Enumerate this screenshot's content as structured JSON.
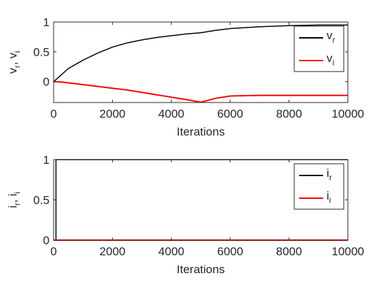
{
  "chart_data": [
    {
      "type": "line",
      "xlabel": "Iterations",
      "ylabel": "v_r, v_i",
      "xlim": [
        0,
        10000
      ],
      "ylim": [
        -0.35,
        1
      ],
      "xticks": [
        0,
        2000,
        4000,
        6000,
        8000,
        10000
      ],
      "yticks": [
        0,
        0.5,
        1
      ],
      "legend": "northeast",
      "series": [
        {
          "name": "v_r",
          "color": "#000000",
          "x": [
            0,
            250,
            500,
            1000,
            1500,
            2000,
            2500,
            3000,
            3500,
            4000,
            4500,
            5000,
            5500,
            6000,
            7000,
            8000,
            9000,
            10000
          ],
          "values": [
            0,
            0.11,
            0.22,
            0.36,
            0.48,
            0.58,
            0.65,
            0.7,
            0.74,
            0.77,
            0.8,
            0.82,
            0.86,
            0.89,
            0.92,
            0.94,
            0.95,
            0.95
          ]
        },
        {
          "name": "v_i",
          "color": "#ff0000",
          "x": [
            0,
            250,
            500,
            1000,
            1500,
            2000,
            2500,
            3000,
            3500,
            4000,
            4500,
            5000,
            5500,
            6000,
            7000,
            8000,
            9000,
            10000
          ],
          "values": [
            0,
            -0.005,
            -0.02,
            -0.05,
            -0.08,
            -0.11,
            -0.14,
            -0.18,
            -0.22,
            -0.26,
            -0.3,
            -0.345,
            -0.28,
            -0.24,
            -0.23,
            -0.23,
            -0.23,
            -0.23
          ]
        }
      ]
    },
    {
      "type": "line",
      "xlabel": "Iterations",
      "ylabel": "i_r, i_i",
      "xlim": [
        0,
        10000
      ],
      "ylim": [
        0,
        1
      ],
      "xticks": [
        0,
        2000,
        4000,
        6000,
        8000,
        10000
      ],
      "yticks": [
        0,
        0.5,
        1
      ],
      "legend": "northeast",
      "series": [
        {
          "name": "i_r",
          "color": "#000000",
          "x": [
            0,
            80,
            80,
            10000
          ],
          "values": [
            0,
            0,
            1,
            1
          ]
        },
        {
          "name": "i_i",
          "color": "#ff0000",
          "x": [
            0,
            10000
          ],
          "values": [
            0,
            0
          ]
        }
      ]
    }
  ]
}
